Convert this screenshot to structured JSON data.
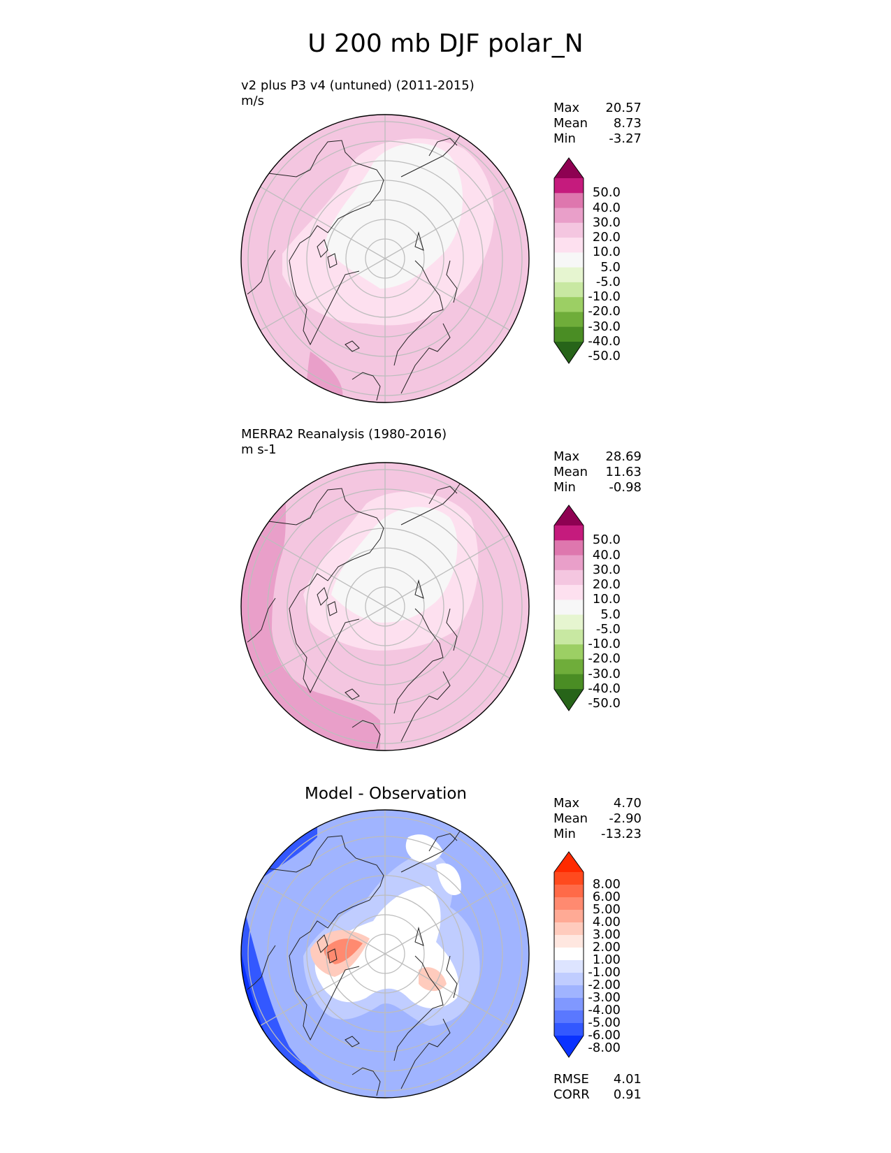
{
  "title": "U 200 mb DJF polar_N",
  "chart_data": [
    {
      "type": "heatmap",
      "projection": "north-polar-stereographic",
      "title": "v2 plus P3 v4 (untuned) (2011-2015)",
      "units": "m/s",
      "stats": [
        {
          "label": "Max",
          "value": "20.57"
        },
        {
          "label": "Mean",
          "value": "8.73"
        },
        {
          "label": "Min",
          "value": "-3.27"
        }
      ],
      "colorbar": {
        "ticks": [
          "50.0",
          "40.0",
          "30.0",
          "20.0",
          "10.0",
          "5.0",
          "-5.0",
          "-10.0",
          "-20.0",
          "-30.0",
          "-40.0",
          "-50.0"
        ],
        "colors": [
          "#8e0152",
          "#c51b7d",
          "#de77ae",
          "#e99fc9",
          "#f4c6e0",
          "#fde0ef",
          "#f7f7f7",
          "#e6f5d0",
          "#c8e8a2",
          "#9ccf64",
          "#6fad3a",
          "#4a8d24",
          "#276419"
        ]
      }
    },
    {
      "type": "heatmap",
      "projection": "north-polar-stereographic",
      "title": "MERRA2 Reanalysis (1980-2016)",
      "units": "m s-1",
      "stats": [
        {
          "label": "Max",
          "value": "28.69"
        },
        {
          "label": "Mean",
          "value": "11.63"
        },
        {
          "label": "Min",
          "value": "-0.98"
        }
      ],
      "colorbar": {
        "ticks": [
          "50.0",
          "40.0",
          "30.0",
          "20.0",
          "10.0",
          "5.0",
          "-5.0",
          "-10.0",
          "-20.0",
          "-30.0",
          "-40.0",
          "-50.0"
        ],
        "colors": [
          "#8e0152",
          "#c51b7d",
          "#de77ae",
          "#e99fc9",
          "#f4c6e0",
          "#fde0ef",
          "#f7f7f7",
          "#e6f5d0",
          "#c8e8a2",
          "#9ccf64",
          "#6fad3a",
          "#4a8d24",
          "#276419"
        ]
      }
    },
    {
      "type": "heatmap",
      "projection": "north-polar-stereographic",
      "title": "Model - Observation",
      "stats": [
        {
          "label": "Max",
          "value": "4.70"
        },
        {
          "label": "Mean",
          "value": "-2.90"
        },
        {
          "label": "Min",
          "value": "-13.23"
        }
      ],
      "metrics": [
        {
          "label": "RMSE",
          "value": "4.01"
        },
        {
          "label": "CORR",
          "value": "0.91"
        }
      ],
      "colorbar": {
        "ticks": [
          "8.00",
          "6.00",
          "5.00",
          "4.00",
          "3.00",
          "2.00",
          "1.00",
          "-1.00",
          "-2.00",
          "-3.00",
          "-4.00",
          "-5.00",
          "-6.00",
          "-8.00"
        ],
        "colors": [
          "#ff2a00",
          "#ff4a1e",
          "#ff6a48",
          "#ff8a70",
          "#ffaa95",
          "#ffcbbd",
          "#ffe7e0",
          "#ffffff",
          "#dde4ff",
          "#c0cdff",
          "#a0b4ff",
          "#8098ff",
          "#5a78ff",
          "#3358ff",
          "#0a32ff"
        ]
      }
    }
  ]
}
